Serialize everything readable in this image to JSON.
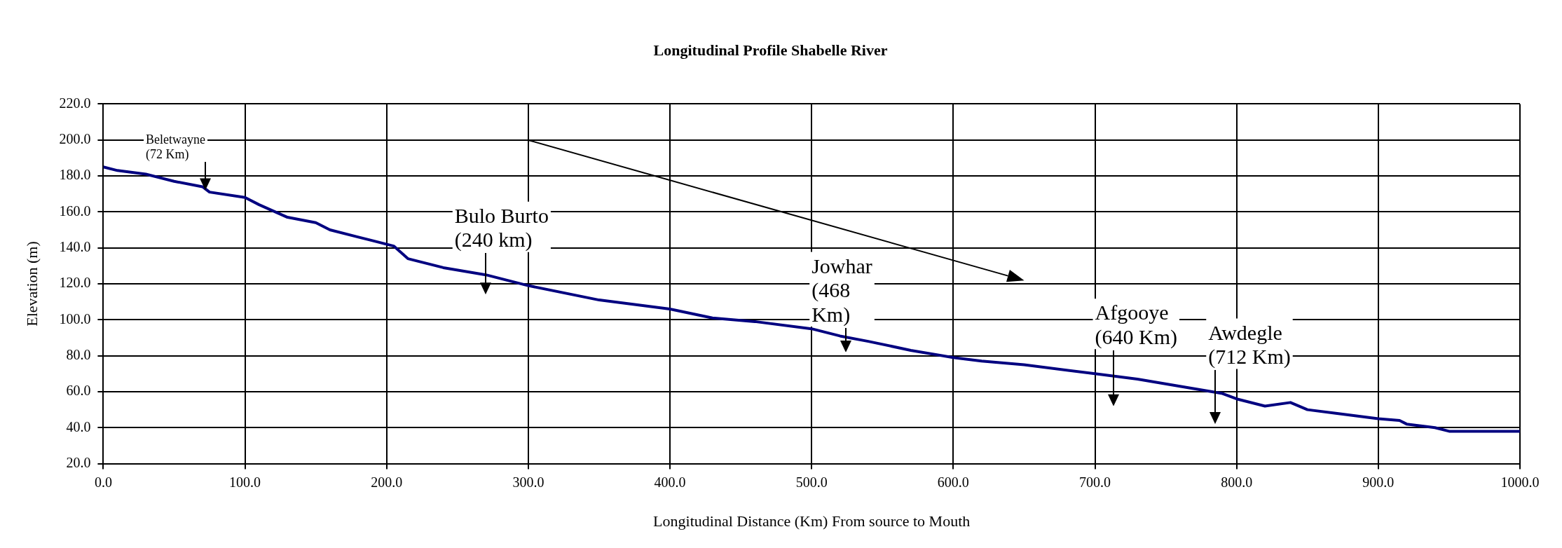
{
  "chart_data": {
    "type": "line",
    "title": "Longitudinal Profile Shabelle River",
    "xlabel": "Longitudinal Distance (Km) From source to Mouth",
    "ylabel": "Elevation (m)",
    "x": [
      0,
      10,
      30,
      50,
      70,
      75,
      100,
      110,
      130,
      150,
      160,
      190,
      205,
      215,
      240,
      270,
      300,
      350,
      400,
      430,
      460,
      500,
      520,
      540,
      570,
      600,
      620,
      650,
      700,
      730,
      760,
      790,
      800,
      820,
      838,
      850,
      870,
      900,
      915,
      920,
      940,
      950,
      1000
    ],
    "series": [
      {
        "color": "#000080",
        "values": [
          185,
          183,
          181,
          177,
          174,
          171,
          168,
          164,
          157,
          154,
          150,
          144,
          141,
          134,
          129,
          125,
          119,
          111,
          106,
          101,
          99,
          95,
          91,
          88,
          83,
          79,
          77,
          75,
          70,
          67,
          63,
          59,
          56,
          52,
          54,
          50,
          48,
          45,
          44,
          42,
          40,
          38,
          38
        ]
      }
    ],
    "xlim": [
      0,
      1000
    ],
    "xticks": [
      {
        "value": 0,
        "label": "0.0"
      },
      {
        "value": 100,
        "label": "100.0"
      },
      {
        "value": 200,
        "label": "200.0"
      },
      {
        "value": 300,
        "label": "300.0"
      },
      {
        "value": 400,
        "label": "400.0"
      },
      {
        "value": 500,
        "label": "500.0"
      },
      {
        "value": 600,
        "label": "600.0"
      },
      {
        "value": 700,
        "label": "700.0"
      },
      {
        "value": 800,
        "label": "800.0"
      },
      {
        "value": 900,
        "label": "900.0"
      },
      {
        "value": 1000,
        "label": "1000.0"
      }
    ],
    "ylim": [
      20,
      220
    ],
    "yticks": [
      {
        "value": 20,
        "label": "20.0"
      },
      {
        "value": 40,
        "label": "40.0"
      },
      {
        "value": 60,
        "label": "60.0"
      },
      {
        "value": 80,
        "label": "80.0"
      },
      {
        "value": 100,
        "label": "100.0"
      },
      {
        "value": 120,
        "label": "120.0"
      },
      {
        "value": 140,
        "label": "140.0"
      },
      {
        "value": 160,
        "label": "160.0"
      },
      {
        "value": 180,
        "label": "180.0"
      },
      {
        "value": 200,
        "label": "200.0"
      },
      {
        "value": 220,
        "label": "220.0"
      }
    ],
    "grid": true,
    "legend": false,
    "marker": "none",
    "line_style": "solid",
    "annotations": [
      "Beletwayne\n(72 Km)",
      "Bulo Burto\n(240 km)",
      "Jowhar\n(468\nKm)",
      "Afgooye\n(640 Km)",
      "Awdegle\n(712 Km)"
    ]
  }
}
